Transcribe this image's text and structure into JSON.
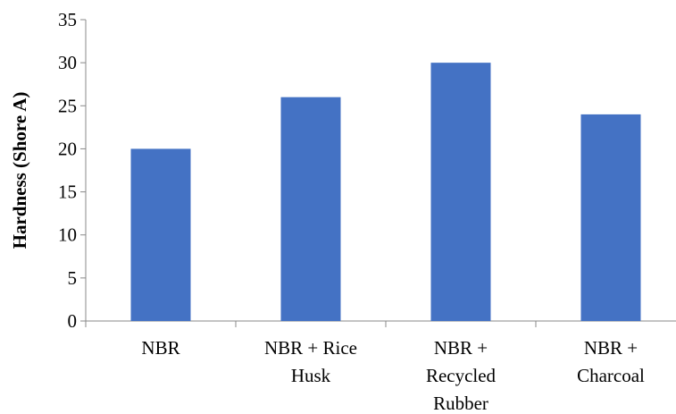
{
  "chart_data": {
    "type": "bar",
    "categories": [
      [
        "NBR"
      ],
      [
        "NBR + Rice",
        "Husk"
      ],
      [
        "NBR +",
        "Recycled",
        "Rubber"
      ],
      [
        "NBR +",
        "Charcoal"
      ]
    ],
    "values": [
      20,
      26,
      30,
      24
    ],
    "ylabel": "Hardness (Shore A)",
    "xlabel": "",
    "title": "",
    "ylim": [
      0,
      35
    ],
    "yticks": [
      0,
      5,
      10,
      15,
      20,
      25,
      30,
      35
    ],
    "bar_color": "#4472C4",
    "grid": false,
    "legend": "none"
  }
}
